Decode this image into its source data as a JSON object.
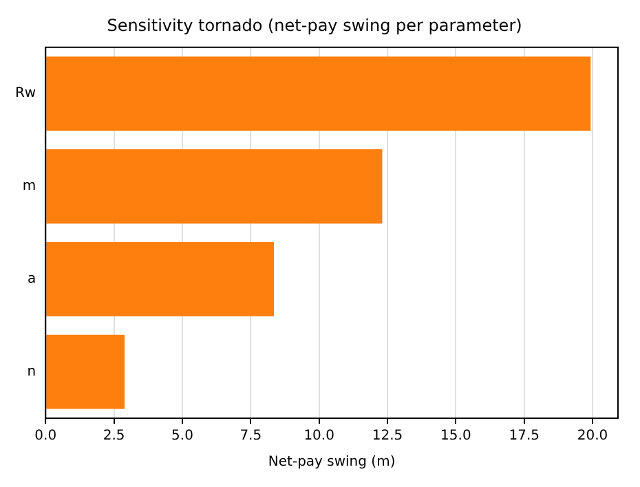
{
  "chart_data": {
    "type": "bar",
    "orientation": "horizontal",
    "title": "Sensitivity tornado (net-pay swing per parameter)",
    "xlabel": "Net-pay swing (m)",
    "categories": [
      "Rw",
      "m",
      "a",
      "n"
    ],
    "values": [
      19.93,
      12.31,
      8.35,
      2.89
    ],
    "color": "#ff7f0e",
    "xlim": [
      0,
      20.93
    ],
    "xticks": [
      {
        "value": 0,
        "label": "0.0"
      },
      {
        "value": 2.5,
        "label": "2.5"
      },
      {
        "value": 5,
        "label": "5.0"
      },
      {
        "value": 7.5,
        "label": "7.5"
      },
      {
        "value": 10,
        "label": "10.0"
      },
      {
        "value": 12.5,
        "label": "12.5"
      },
      {
        "value": 15,
        "label": "15.0"
      },
      {
        "value": 17.5,
        "label": "17.5"
      },
      {
        "value": 20,
        "label": "20.0"
      }
    ],
    "grid": "x"
  }
}
